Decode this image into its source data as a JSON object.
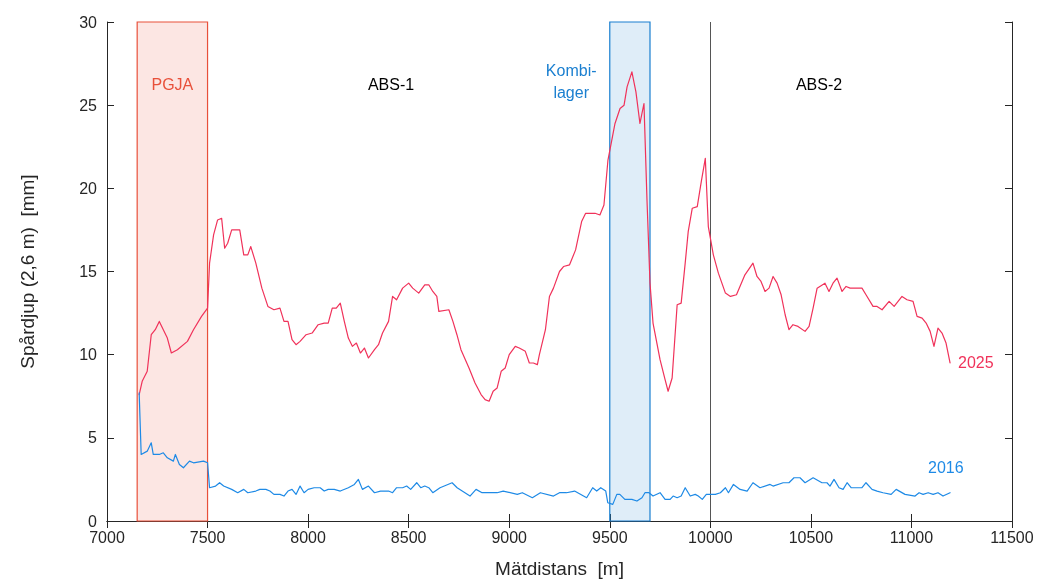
{
  "chart_data": {
    "type": "line",
    "xlabel": "Mätdistans  [m]",
    "ylabel": "Spårdjup (2,6 m)  [mm]",
    "xlim": [
      7000,
      11500
    ],
    "xticks": [
      7000,
      7500,
      8000,
      8500,
      9000,
      9500,
      10000,
      10500,
      11000,
      11500
    ],
    "ylim": [
      0,
      30
    ],
    "yticks": [
      0,
      5,
      10,
      15,
      20,
      25,
      30
    ],
    "grid": false,
    "legend": false,
    "marker": "none",
    "line_style": "solid",
    "series": [
      {
        "name": "2025",
        "color": "#f0325a",
        "x": [
          7160,
          7175,
          7200,
          7220,
          7240,
          7260,
          7300,
          7320,
          7350,
          7400,
          7430,
          7470,
          7500,
          7510,
          7530,
          7550,
          7570,
          7585,
          7600,
          7620,
          7660,
          7680,
          7700,
          7715,
          7740,
          7770,
          7800,
          7830,
          7860,
          7880,
          7900,
          7920,
          7940,
          7960,
          7990,
          8020,
          8050,
          8080,
          8100,
          8120,
          8140,
          8160,
          8180,
          8200,
          8220,
          8240,
          8260,
          8280,
          8300,
          8330,
          8350,
          8370,
          8400,
          8420,
          8440,
          8470,
          8500,
          8520,
          8550,
          8580,
          8600,
          8620,
          8640,
          8650,
          8700,
          8720,
          8740,
          8760,
          8800,
          8830,
          8860,
          8880,
          8900,
          8920,
          8940,
          8960,
          8980,
          9000,
          9030,
          9050,
          9080,
          9100,
          9120,
          9140,
          9150,
          9180,
          9200,
          9220,
          9250,
          9270,
          9300,
          9330,
          9360,
          9380,
          9400,
          9427,
          9451,
          9471,
          9491,
          9526,
          9551,
          9571,
          9586,
          9610,
          9630,
          9650,
          9670,
          9685,
          9700,
          9715,
          9750,
          9775,
          9790,
          9810,
          9835,
          9855,
          9875,
          9890,
          9910,
          9935,
          9955,
          9975,
          9990,
          10015,
          10040,
          10075,
          10100,
          10130,
          10172,
          10212,
          10232,
          10252,
          10272,
          10292,
          10312,
          10332,
          10352,
          10372,
          10391,
          10411,
          10436,
          10471,
          10491,
          10511,
          10531,
          10570,
          10590,
          10610,
          10630,
          10655,
          10675,
          10695,
          10730,
          10754,
          10774,
          10809,
          10829,
          10854,
          10889,
          10914,
          10953,
          10978,
          11008,
          11028,
          11053,
          11073,
          11093,
          11112,
          11132,
          11152,
          11172,
          11192
        ],
        "values": [
          7.6,
          8.4,
          9.0,
          11.2,
          11.5,
          12.0,
          11.0,
          10.1,
          10.3,
          10.8,
          11.5,
          12.3,
          12.8,
          15.5,
          17.2,
          18.1,
          18.2,
          16.4,
          16.7,
          17.5,
          17.5,
          16.0,
          16.0,
          16.5,
          15.5,
          14.0,
          12.9,
          12.7,
          12.8,
          12.0,
          12.0,
          10.9,
          10.6,
          10.8,
          11.2,
          11.3,
          11.8,
          11.9,
          11.9,
          12.8,
          12.8,
          13.1,
          12.0,
          11.0,
          10.5,
          10.7,
          10.1,
          10.4,
          9.8,
          10.3,
          10.6,
          11.3,
          12.0,
          13.5,
          13.3,
          14.0,
          14.3,
          14.0,
          13.7,
          14.2,
          14.2,
          13.8,
          13.5,
          12.6,
          12.7,
          12.0,
          11.2,
          10.3,
          9.2,
          8.3,
          7.6,
          7.3,
          7.2,
          7.8,
          8.0,
          9.0,
          9.2,
          10.0,
          10.5,
          10.4,
          10.2,
          9.5,
          9.5,
          9.4,
          10.0,
          11.5,
          13.5,
          14.0,
          15.0,
          15.3,
          15.4,
          16.3,
          18.0,
          18.5,
          18.5,
          18.5,
          18.4,
          19.0,
          21.7,
          23.9,
          24.8,
          25.0,
          26.1,
          27.0,
          25.8,
          23.9,
          25.1,
          19.3,
          14.3,
          11.9,
          9.7,
          8.5,
          7.8,
          8.6,
          13.0,
          13.1,
          15.5,
          17.4,
          18.8,
          18.9,
          20.4,
          21.8,
          17.7,
          16.0,
          14.9,
          13.7,
          13.5,
          13.6,
          14.8,
          15.5,
          14.7,
          14.4,
          13.8,
          14.0,
          14.7,
          14.3,
          13.6,
          12.4,
          11.5,
          11.8,
          11.7,
          11.4,
          11.7,
          12.8,
          14.0,
          14.3,
          13.8,
          14.3,
          14.6,
          13.8,
          14.1,
          14.0,
          14.0,
          14.0,
          13.6,
          12.9,
          12.9,
          12.7,
          13.2,
          12.9,
          13.5,
          13.3,
          13.2,
          12.3,
          12.2,
          11.9,
          11.4,
          10.5,
          11.6,
          11.3,
          10.7,
          9.5
        ]
      },
      {
        "name": "2016",
        "color": "#1e8ae6",
        "x": [
          7160,
          7170,
          7200,
          7220,
          7230,
          7260,
          7280,
          7300,
          7330,
          7340,
          7360,
          7380,
          7410,
          7430,
          7480,
          7500,
          7510,
          7540,
          7560,
          7580,
          7620,
          7650,
          7680,
          7700,
          7740,
          7760,
          7790,
          7810,
          7830,
          7860,
          7880,
          7900,
          7920,
          7940,
          7960,
          7980,
          8000,
          8030,
          8060,
          8080,
          8100,
          8130,
          8160,
          8200,
          8230,
          8250,
          8270,
          8300,
          8330,
          8360,
          8400,
          8420,
          8440,
          8470,
          8490,
          8510,
          8540,
          8560,
          8580,
          8600,
          8620,
          8656,
          8716,
          8741,
          8805,
          8835,
          8865,
          8940,
          8970,
          9040,
          9065,
          9115,
          9155,
          9220,
          9250,
          9285,
          9325,
          9385,
          9415,
          9435,
          9455,
          9480,
          9490,
          9515,
          9535,
          9550,
          9575,
          9610,
          9635,
          9660,
          9675,
          9695,
          9715,
          9750,
          9775,
          9800,
          9815,
          9835,
          9855,
          9875,
          9900,
          9925,
          9940,
          9960,
          9980,
          10025,
          10050,
          10075,
          10090,
          10115,
          10148,
          10183,
          10212,
          10247,
          10297,
          10312,
          10362,
          10391,
          10416,
          10446,
          10471,
          10511,
          10555,
          10580,
          10595,
          10615,
          10640,
          10660,
          10680,
          10700,
          10720,
          10754,
          10774,
          10804,
          10829,
          10859,
          10899,
          10924,
          10968,
          11018,
          11038,
          11058,
          11083,
          11108,
          11132,
          11157,
          11192
        ],
        "values": [
          7.7,
          4.0,
          4.2,
          4.7,
          4.0,
          4.0,
          4.1,
          3.8,
          3.6,
          4.0,
          3.4,
          3.2,
          3.6,
          3.5,
          3.6,
          3.5,
          2.0,
          2.1,
          2.3,
          2.1,
          1.9,
          1.7,
          1.9,
          1.7,
          1.8,
          1.9,
          1.9,
          1.8,
          1.6,
          1.6,
          1.5,
          1.8,
          1.9,
          1.6,
          2.1,
          1.7,
          1.9,
          2.0,
          2.0,
          1.8,
          1.9,
          1.9,
          1.8,
          2.0,
          2.2,
          2.5,
          1.9,
          2.1,
          1.7,
          1.8,
          1.8,
          1.7,
          2.0,
          2.0,
          2.1,
          1.9,
          2.3,
          2.0,
          2.1,
          2.0,
          1.7,
          2.0,
          2.3,
          2.0,
          1.5,
          1.9,
          1.7,
          1.7,
          1.8,
          1.6,
          1.7,
          1.4,
          1.7,
          1.5,
          1.7,
          1.7,
          1.8,
          1.4,
          2.0,
          1.8,
          2.0,
          1.8,
          1.1,
          1.0,
          1.6,
          1.6,
          1.3,
          1.3,
          1.2,
          1.4,
          1.7,
          1.7,
          1.5,
          1.7,
          1.3,
          1.3,
          1.5,
          1.4,
          1.5,
          2.0,
          1.5,
          1.6,
          1.5,
          1.3,
          1.6,
          1.6,
          1.7,
          2.0,
          1.7,
          2.2,
          1.9,
          1.8,
          2.3,
          2.0,
          2.2,
          2.1,
          2.3,
          2.3,
          2.6,
          2.6,
          2.3,
          2.6,
          2.3,
          2.3,
          2.1,
          2.5,
          2.0,
          1.9,
          2.3,
          2.0,
          2.0,
          2.0,
          2.3,
          1.9,
          1.8,
          1.7,
          1.6,
          1.9,
          1.6,
          1.5,
          1.7,
          1.6,
          1.7,
          1.6,
          1.7,
          1.5,
          1.7
        ]
      }
    ],
    "bands": [
      {
        "axis": "x",
        "from": 7150,
        "to": 7500,
        "label": "PGJA",
        "color": "#e8503a"
      },
      {
        "axis": "x",
        "from": 9500,
        "to": 9700,
        "label": "Kombi-\nlager",
        "color": "#1a7fd0"
      }
    ],
    "ref_lines": [
      {
        "axis": "x",
        "value": 10000,
        "label": null,
        "color": "#555555"
      }
    ],
    "annotations": [
      "ABS-1",
      "ABS-2"
    ]
  }
}
